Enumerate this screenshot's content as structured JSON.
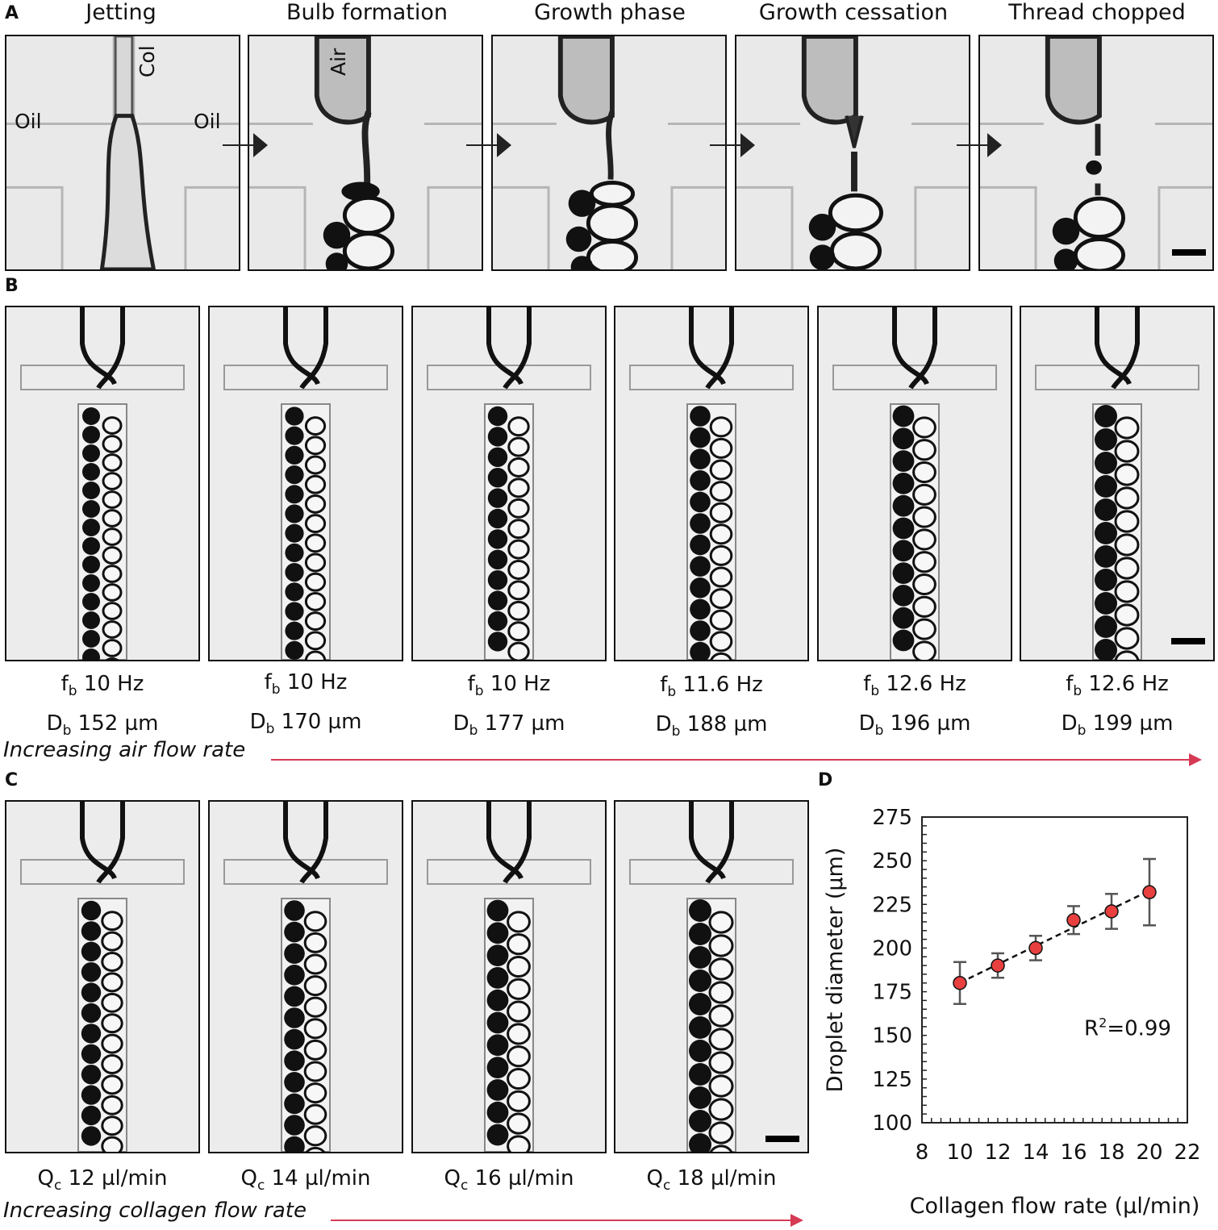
{
  "panel_labels": {
    "a": "A",
    "b": "B",
    "c": "C",
    "d": "D"
  },
  "panel_a": {
    "steps": [
      "Jetting",
      "Bulb formation",
      "Growth phase",
      "Growth cessation",
      "Thread chopped"
    ],
    "labels": {
      "col": "Col",
      "air": "Air",
      "oil_left": "Oil",
      "oil_right": "Oil"
    }
  },
  "panel_b": {
    "captions": [
      {
        "f_sym": "f",
        "f_sub": "b",
        "f_val": "10 Hz",
        "d_sym": "D",
        "d_sub": "b",
        "d_val": "152 µm"
      },
      {
        "f_sym": "f",
        "f_sub": "b",
        "f_val": "10 Hz",
        "d_sym": "D",
        "d_sub": "b",
        "d_val": "170 µm"
      },
      {
        "f_sym": "f",
        "f_sub": "b",
        "f_val": "10 Hz",
        "d_sym": "D",
        "d_sub": "b",
        "d_val": "177 µm"
      },
      {
        "f_sym": "f",
        "f_sub": "b",
        "f_val": "11.6 Hz",
        "d_sym": "D",
        "d_sub": "b",
        "d_val": "188 µm"
      },
      {
        "f_sym": "f",
        "f_sub": "b",
        "f_val": "12.6 Hz",
        "d_sym": "D",
        "d_sub": "b",
        "d_val": "196 µm"
      },
      {
        "f_sym": "f",
        "f_sub": "b",
        "f_val": "12.6 Hz",
        "d_sym": "D",
        "d_sub": "b",
        "d_val": "199 µm"
      }
    ],
    "trend_label": "Increasing air flow rate"
  },
  "panel_c": {
    "captions": [
      {
        "sym": "Q",
        "sub": "c",
        "val": "12 µl/min"
      },
      {
        "sym": "Q",
        "sub": "c",
        "val": "14 µl/min"
      },
      {
        "sym": "Q",
        "sub": "c",
        "val": "16 µl/min"
      },
      {
        "sym": "Q",
        "sub": "c",
        "val": "18 µl/min"
      }
    ],
    "trend_label": "Increasing collagen flow rate"
  },
  "chart_data": {
    "type": "scatter",
    "title": "",
    "xlabel": "Collagen flow rate  (µl/min)",
    "ylabel": "Droplet diameter (µm)",
    "xlim": [
      8,
      22
    ],
    "ylim": [
      100,
      275
    ],
    "xticks": [
      8,
      10,
      12,
      14,
      16,
      18,
      20,
      22
    ],
    "yticks": [
      100,
      125,
      150,
      175,
      200,
      225,
      250,
      275
    ],
    "x": [
      10,
      12,
      14,
      16,
      18,
      20
    ],
    "y": [
      180,
      190,
      200,
      216,
      221,
      232
    ],
    "err": [
      12,
      7,
      7,
      8,
      10,
      19
    ],
    "trendline": "linear",
    "annotation": {
      "text": "R",
      "sup": "2",
      "rest": "=0.99"
    },
    "point_color": "#e8403f"
  }
}
